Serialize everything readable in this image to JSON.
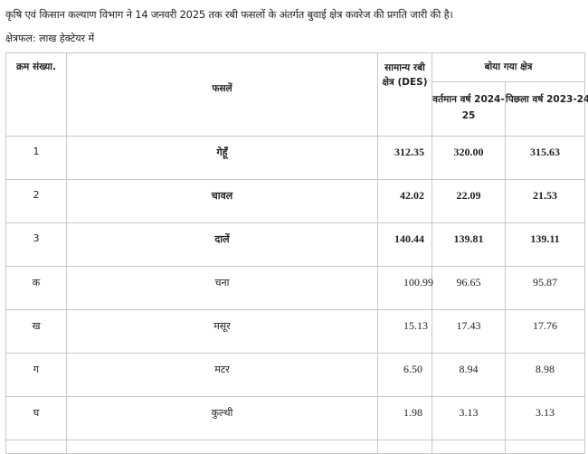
{
  "intro_text": "कृषि एवं किसान कल्याण विभाग ने 14 जनवरी 2025 तक रबी फसलों के अंतर्गत बुवाई क्षेत्र कवरेज की प्रगति जारी की है।",
  "unit_text": "क्षेत्रफल: लाख हेक्टेयर में",
  "table": {
    "headers": {
      "serial": "क्रम संख्या.",
      "crops": "फसलें",
      "normal_area": "सामान्य रबी क्षेत्र (DES)",
      "sown_area": "बोया गया क्षेत्र",
      "current_year": "वर्तमान वर्ष 2024-25",
      "previous_year": "पिछला वर्ष 2023-24"
    },
    "rows": [
      {
        "serial": "1",
        "crop": "गेहूँ",
        "normal": "312.35",
        "current": "320.00",
        "previous": "315.63",
        "bold": true
      },
      {
        "serial": "2",
        "crop": "चावल",
        "normal": "42.02",
        "current": "22.09",
        "previous": "21.53",
        "bold": true
      },
      {
        "serial": "3",
        "crop": "दालें",
        "normal": "140.44",
        "current": "139.81",
        "previous": "139.11",
        "bold": true
      },
      {
        "serial": "क",
        "crop": "चना",
        "normal": "100.99",
        "current": "96.65",
        "previous": "95.87",
        "bold": false
      },
      {
        "serial": "ख",
        "crop": "मसूर",
        "normal": "15.13",
        "current": "17.43",
        "previous": "17.76",
        "bold": false
      },
      {
        "serial": "ग",
        "crop": "मटर",
        "normal": "6.50",
        "current": "8.94",
        "previous": "8.98",
        "bold": false
      },
      {
        "serial": "घ",
        "crop": "कुल्थी",
        "normal": "1.98",
        "current": "3.13",
        "previous": "3.13",
        "bold": false
      }
    ]
  }
}
